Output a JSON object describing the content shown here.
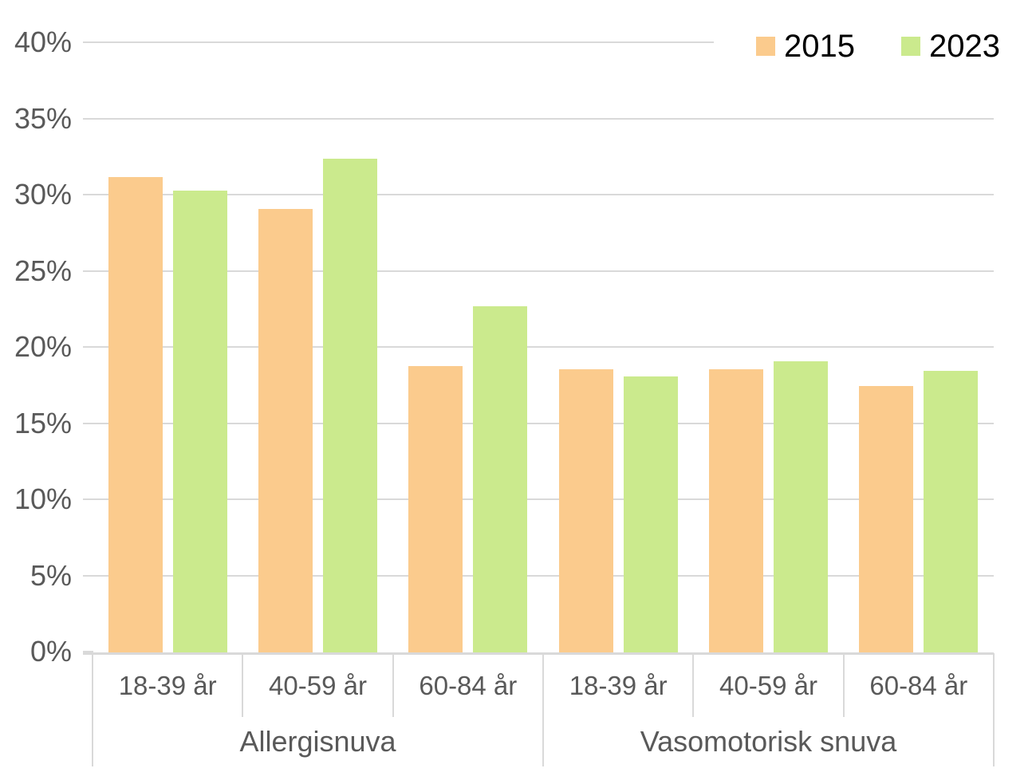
{
  "chart_data": {
    "type": "bar",
    "title": "",
    "legend_position": "top-right",
    "grid": "horizontal",
    "y_axis": {
      "min": 0,
      "max": 40,
      "step": 5,
      "format": "percent",
      "ticks": [
        "0%",
        "5%",
        "10%",
        "15%",
        "20%",
        "25%",
        "30%",
        "35%",
        "40%"
      ]
    },
    "groups": [
      {
        "label": "Allergisnuva",
        "categories": [
          "18-39 år",
          "40-59 år",
          "60-84 år"
        ]
      },
      {
        "label": "Vasomotorisk snuva",
        "categories": [
          "18-39 år",
          "40-59 år",
          "60-84 år"
        ]
      }
    ],
    "series": [
      {
        "name": "2015",
        "color": "#FBCB8D",
        "values": [
          [
            31.2,
            29.1,
            18.8
          ],
          [
            18.6,
            18.6,
            17.5
          ]
        ]
      },
      {
        "name": "2023",
        "color": "#CBEA8D",
        "values": [
          [
            30.3,
            32.4,
            22.7
          ],
          [
            18.1,
            19.1,
            18.5
          ]
        ]
      }
    ]
  },
  "colors": {
    "background": "#FFFFFF",
    "grid_line": "#D9D9D9",
    "axis_text": "#595959",
    "legend_text": "#000000"
  }
}
